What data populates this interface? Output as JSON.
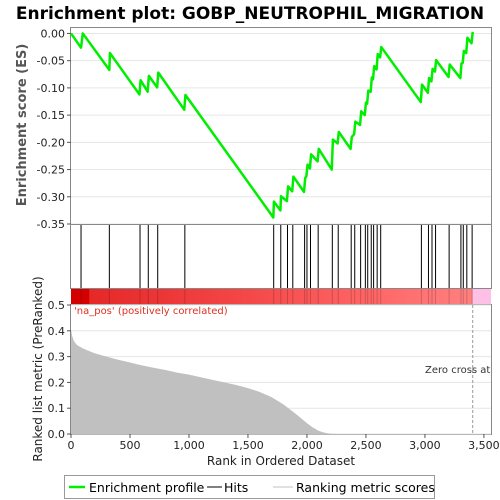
{
  "chart_data": {
    "type": "line",
    "title": "Enrichment plot: GOBP_NEUTROPHIL_MIGRATION",
    "x_range": [
      0,
      3560
    ],
    "x_ticks": [
      0,
      500,
      1000,
      1500,
      2000,
      2500,
      3000,
      3500
    ],
    "x_tick_labels": [
      "0",
      "500",
      "1,000",
      "1,500",
      "2,000",
      "2,500",
      "3,000",
      "3,500"
    ],
    "xlabel": "Rank in Ordered Dataset",
    "enrichment": {
      "ylabel": "Enrichment score (ES)",
      "ylim": [
        -0.35,
        0.01
      ],
      "y_ticks": [
        0.0,
        -0.05,
        -0.1,
        -0.15,
        -0.2,
        -0.25,
        -0.3,
        -0.35
      ],
      "y_tick_labels": [
        "0.00",
        "-0.05",
        "-0.10",
        "-0.15",
        "-0.20",
        "-0.25",
        "-0.30",
        "-0.35"
      ],
      "color": "#00ee00",
      "points": [
        [
          0,
          0.0
        ],
        [
          85,
          -0.026
        ],
        [
          100,
          0.0
        ],
        [
          325,
          -0.067
        ],
        [
          330,
          -0.036
        ],
        [
          580,
          -0.112
        ],
        [
          590,
          -0.086
        ],
        [
          650,
          -0.107
        ],
        [
          660,
          -0.078
        ],
        [
          730,
          -0.099
        ],
        [
          740,
          -0.072
        ],
        [
          960,
          -0.14
        ],
        [
          970,
          -0.113
        ],
        [
          1715,
          -0.338
        ],
        [
          1720,
          -0.309
        ],
        [
          1775,
          -0.325
        ],
        [
          1780,
          -0.299
        ],
        [
          1830,
          -0.308
        ],
        [
          1840,
          -0.281
        ],
        [
          1875,
          -0.29
        ],
        [
          1885,
          -0.263
        ],
        [
          1975,
          -0.291
        ],
        [
          1985,
          -0.266
        ],
        [
          1995,
          -0.262
        ],
        [
          2005,
          -0.241
        ],
        [
          2025,
          -0.248
        ],
        [
          2035,
          -0.222
        ],
        [
          2090,
          -0.235
        ],
        [
          2100,
          -0.212
        ],
        [
          2210,
          -0.25
        ],
        [
          2220,
          -0.195
        ],
        [
          2260,
          -0.202
        ],
        [
          2270,
          -0.181
        ],
        [
          2370,
          -0.212
        ],
        [
          2380,
          -0.19
        ],
        [
          2400,
          -0.185
        ],
        [
          2410,
          -0.162
        ],
        [
          2450,
          -0.168
        ],
        [
          2460,
          -0.143
        ],
        [
          2490,
          -0.15
        ],
        [
          2500,
          -0.127
        ],
        [
          2510,
          -0.129
        ],
        [
          2520,
          -0.105
        ],
        [
          2540,
          -0.107
        ],
        [
          2550,
          -0.081
        ],
        [
          2560,
          -0.084
        ],
        [
          2570,
          -0.06
        ],
        [
          2590,
          -0.066
        ],
        [
          2600,
          -0.038
        ],
        [
          2620,
          -0.044
        ],
        [
          2630,
          -0.025
        ],
        [
          2965,
          -0.126
        ],
        [
          2975,
          -0.094
        ],
        [
          3025,
          -0.109
        ],
        [
          3035,
          -0.082
        ],
        [
          3055,
          -0.088
        ],
        [
          3065,
          -0.065
        ],
        [
          3085,
          -0.07
        ],
        [
          3095,
          -0.049
        ],
        [
          3200,
          -0.08
        ],
        [
          3210,
          -0.057
        ],
        [
          3300,
          -0.082
        ],
        [
          3310,
          -0.055
        ],
        [
          3320,
          -0.054
        ],
        [
          3330,
          -0.032
        ],
        [
          3350,
          -0.036
        ],
        [
          3360,
          -0.008
        ],
        [
          3395,
          -0.018
        ],
        [
          3405,
          0.003
        ]
      ]
    },
    "hits": [
      85,
      325,
      585,
      655,
      735,
      965,
      1718,
      1778,
      1835,
      1880,
      1980,
      2000,
      2030,
      2095,
      2215,
      2265,
      2375,
      2405,
      2455,
      2495,
      2515,
      2545,
      2565,
      2595,
      2625,
      2970,
      3030,
      3060,
      3090,
      3205,
      3305,
      3325,
      3355,
      3400
    ],
    "ranking": {
      "ylabel": "Ranked list metric (PreRanked)",
      "ylim": [
        0.0,
        0.5
      ],
      "y_ticks": [
        0.0,
        0.1,
        0.2,
        0.3,
        0.4,
        0.5
      ],
      "y_tick_labels": [
        "0.0",
        "0.1",
        "0.2",
        "0.3",
        "0.4",
        "0.5"
      ],
      "color": "#c0c0c0",
      "points": [
        [
          0,
          0.405
        ],
        [
          10,
          0.38
        ],
        [
          25,
          0.36
        ],
        [
          50,
          0.345
        ],
        [
          100,
          0.332
        ],
        [
          150,
          0.322
        ],
        [
          200,
          0.313
        ],
        [
          300,
          0.3
        ],
        [
          400,
          0.288
        ],
        [
          500,
          0.277
        ],
        [
          600,
          0.266
        ],
        [
          700,
          0.257
        ],
        [
          800,
          0.248
        ],
        [
          900,
          0.238
        ],
        [
          1000,
          0.23
        ],
        [
          1100,
          0.22
        ],
        [
          1200,
          0.21
        ],
        [
          1300,
          0.2
        ],
        [
          1400,
          0.19
        ],
        [
          1500,
          0.178
        ],
        [
          1600,
          0.163
        ],
        [
          1700,
          0.143
        ],
        [
          1800,
          0.115
        ],
        [
          1900,
          0.08
        ],
        [
          2000,
          0.042
        ],
        [
          2050,
          0.025
        ],
        [
          2100,
          0.012
        ],
        [
          2150,
          0.005
        ],
        [
          2200,
          0.001
        ],
        [
          2300,
          0.0
        ],
        [
          3405,
          0.0
        ]
      ],
      "zero_cross_label": "Zero cross at",
      "zero_cross": 3405,
      "positive_label": "'na_pos' (positively correlated)"
    },
    "legend": {
      "placement": "bottom",
      "entries": [
        {
          "label": "Enrichment profile",
          "color": "#00ee00"
        },
        {
          "label": "Hits",
          "color": "#000000"
        },
        {
          "label": "Ranking metric scores",
          "color": "#c0c0c0"
        }
      ]
    }
  }
}
